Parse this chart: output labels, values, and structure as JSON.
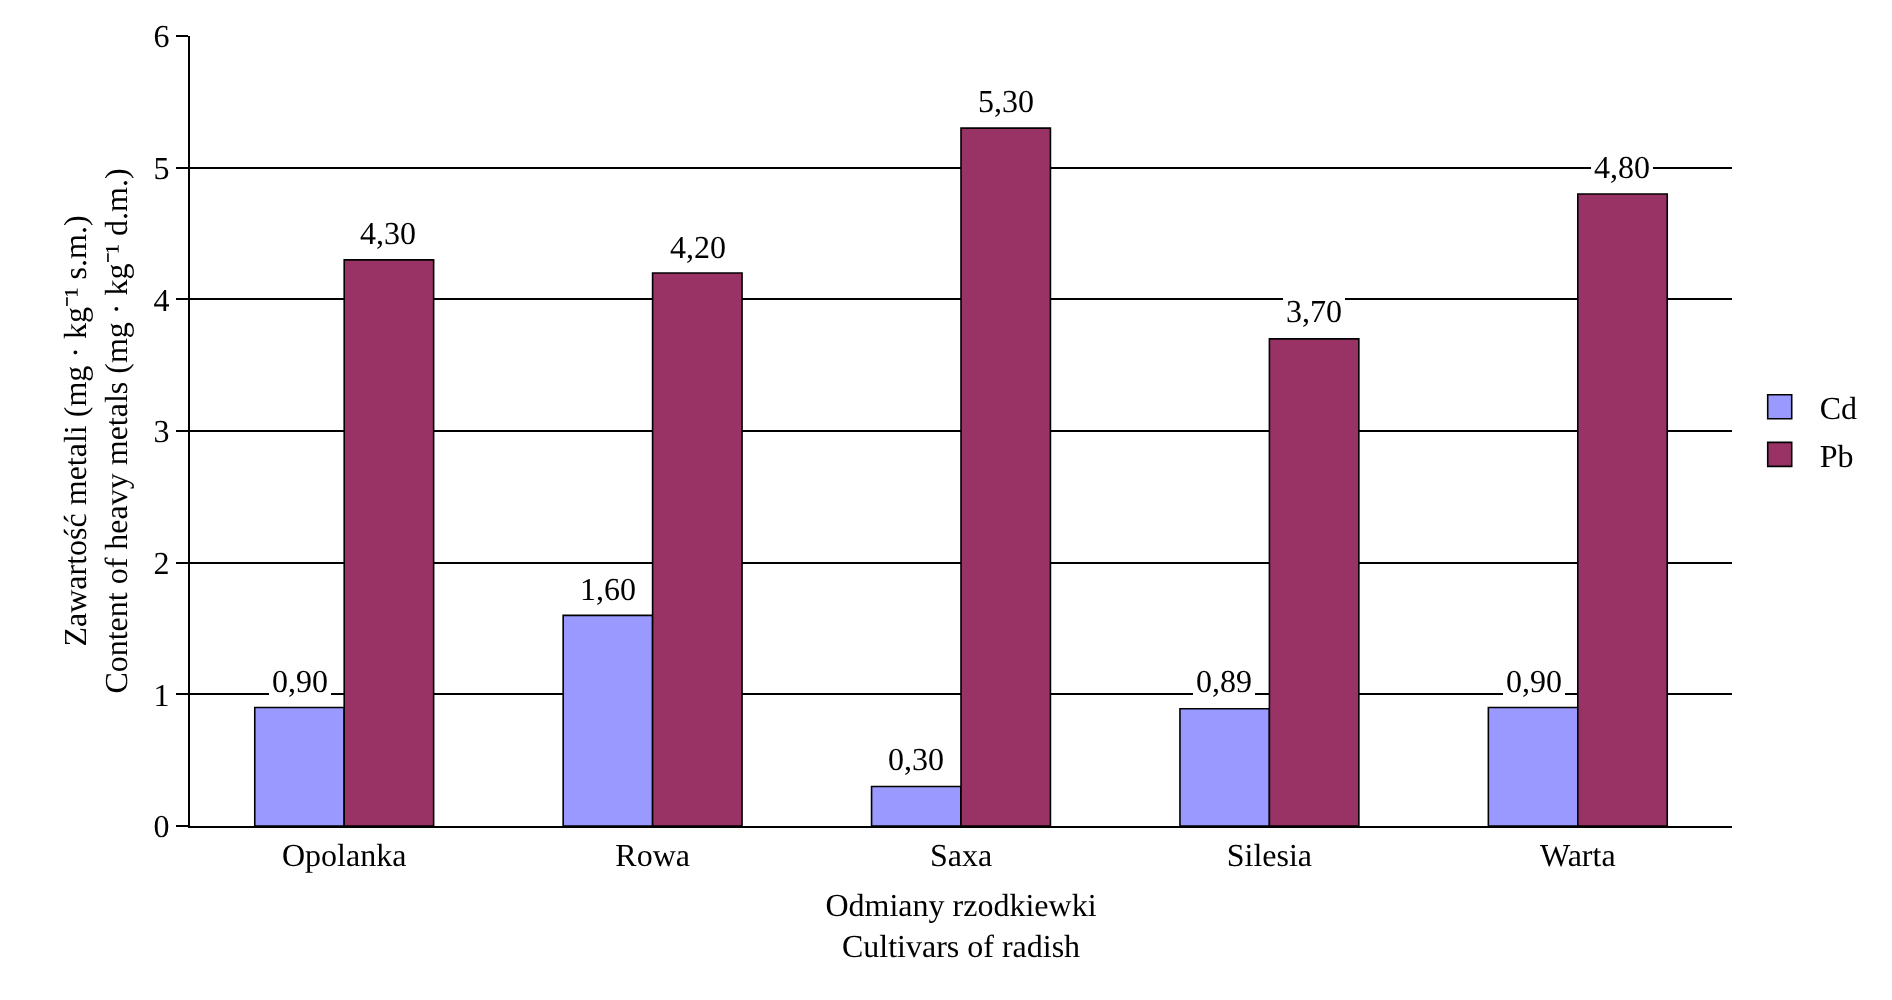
{
  "chart_data": {
    "type": "bar",
    "xlabel": "Odmiany rzodkiewki\nCultivars of radish",
    "ylabel": "Zawartość metali (mg · kg⁻¹ s.m.)\nContent of heavy metals (mg · kg⁻¹ d.m.)",
    "categories": [
      "Opolanka",
      "Rowa",
      "Saxa",
      "Silesia",
      "Warta"
    ],
    "series": [
      {
        "name": "Cd",
        "color": "#9999ff",
        "values": [
          0.9,
          1.6,
          0.3,
          0.89,
          0.9
        ],
        "value_labels": [
          "0,90",
          "1,60",
          "0,30",
          "0,89",
          "0,90"
        ]
      },
      {
        "name": "Pb",
        "color": "#993366",
        "values": [
          4.3,
          4.2,
          5.3,
          3.7,
          4.8
        ],
        "value_labels": [
          "4,30",
          "4,20",
          "5,30",
          "3,70",
          "4,80"
        ]
      }
    ],
    "ylim": [
      0,
      6
    ],
    "yticks": [
      0,
      1,
      2,
      3,
      4,
      5,
      6
    ],
    "grid": "y",
    "legend": "right"
  }
}
